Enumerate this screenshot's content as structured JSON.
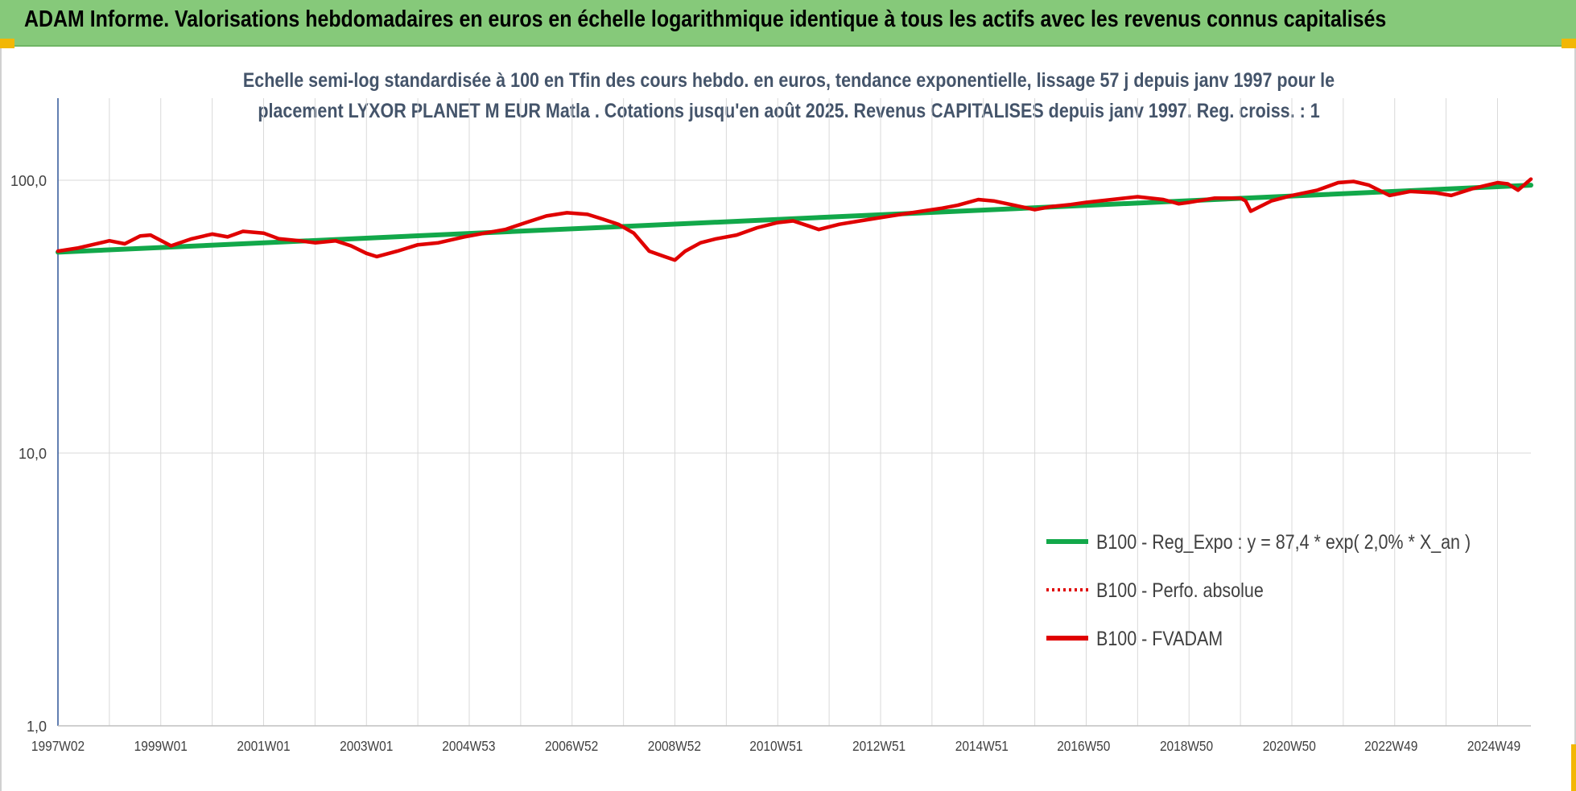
{
  "header": {
    "title": "ADAM Informe. Valorisations hebdomadaires en euros en échelle logarithmique identique à tous les actifs avec les revenus connus capitalisés"
  },
  "chart_data": {
    "type": "line",
    "title_lines": [
      "Echelle semi-log standardisée à 100 en Tfin des cours hebdo. en euros, tendance exponentielle, lissage 57 j depuis janv 1997 pour le",
      "placement LYXOR PLANET M EUR Matla . Cotations jusqu'en août 2025. Revenus CAPITALISES depuis janv 1997. Reg. croiss. : 1"
    ],
    "y_scale": "log",
    "ylim": [
      1,
      200
    ],
    "y_ticks": [
      {
        "value": 1,
        "label": "1,0"
      },
      {
        "value": 10,
        "label": "10,0"
      },
      {
        "value": 100,
        "label": "100,0"
      }
    ],
    "xlim": [
      1997.0,
      2025.65
    ],
    "x_ticks": [
      {
        "value": 1997.0,
        "label": "1997W02"
      },
      {
        "value": 1999.0,
        "label": "1999W01"
      },
      {
        "value": 2001.0,
        "label": "2001W01"
      },
      {
        "value": 2003.0,
        "label": "2003W01"
      },
      {
        "value": 2004.99,
        "label": "2004W53"
      },
      {
        "value": 2006.99,
        "label": "2006W52"
      },
      {
        "value": 2008.99,
        "label": "2008W52"
      },
      {
        "value": 2010.97,
        "label": "2010W51"
      },
      {
        "value": 2012.97,
        "label": "2012W51"
      },
      {
        "value": 2014.97,
        "label": "2014W51"
      },
      {
        "value": 2016.95,
        "label": "2016W50"
      },
      {
        "value": 2018.95,
        "label": "2018W50"
      },
      {
        "value": 2020.95,
        "label": "2020W50"
      },
      {
        "value": 2022.93,
        "label": "2022W49"
      },
      {
        "value": 2024.93,
        "label": "2024W49"
      }
    ],
    "grid": true,
    "legend_position": "lower-right",
    "series": [
      {
        "name": "B100 - Reg_Expo : y = 87,4 * exp( 2,0% *  X_an )",
        "color": "#12a84a",
        "style": "solid",
        "x": [
          1997.0,
          2025.65
        ],
        "y": [
          54.5,
          96.0
        ]
      },
      {
        "name": "B100 - Perfo. absolue",
        "color": "#e00000",
        "style": "dotted",
        "x": [],
        "y": []
      },
      {
        "name": "B100 - FVADAM",
        "color": "#e00000",
        "style": "solid",
        "x": [
          1997.0,
          1997.4,
          1998.0,
          1998.3,
          1998.6,
          1998.8,
          1999.2,
          1999.6,
          2000.0,
          2000.3,
          2000.6,
          2001.0,
          2001.3,
          2001.7,
          2002.0,
          2002.4,
          2002.7,
          2003.0,
          2003.2,
          2003.6,
          2004.0,
          2004.4,
          2004.9,
          2005.3,
          2005.7,
          2006.1,
          2006.5,
          2006.9,
          2007.3,
          2007.6,
          2007.9,
          2008.2,
          2008.5,
          2008.8,
          2009.0,
          2009.2,
          2009.5,
          2009.8,
          2010.2,
          2010.6,
          2011.0,
          2011.3,
          2011.6,
          2011.8,
          2012.2,
          2012.6,
          2013.0,
          2013.4,
          2013.8,
          2014.2,
          2014.5,
          2014.9,
          2015.2,
          2015.6,
          2016.0,
          2016.3,
          2016.7,
          2017.0,
          2017.5,
          2018.0,
          2018.5,
          2018.8,
          2019.0,
          2019.5,
          2020.0,
          2020.1,
          2020.2,
          2020.6,
          2021.0,
          2021.5,
          2021.9,
          2022.2,
          2022.5,
          2022.9,
          2023.3,
          2023.8,
          2024.1,
          2024.5,
          2024.8,
          2025.0,
          2025.2,
          2025.4,
          2025.65
        ],
        "y": [
          55.0,
          56.5,
          60.0,
          58.5,
          62.5,
          63.0,
          57.5,
          61.0,
          63.5,
          62.0,
          65.0,
          64.0,
          61.0,
          60.0,
          59.0,
          60.0,
          57.5,
          54.0,
          52.5,
          55.0,
          58.0,
          59.0,
          62.0,
          64.0,
          66.0,
          70.0,
          74.0,
          76.0,
          75.0,
          72.0,
          69.0,
          64.0,
          55.0,
          52.5,
          51.0,
          55.0,
          59.0,
          61.0,
          63.0,
          67.0,
          70.0,
          71.0,
          68.0,
          66.0,
          69.0,
          71.0,
          73.0,
          75.0,
          77.0,
          79.0,
          81.0,
          85.0,
          84.0,
          81.0,
          78.0,
          80.0,
          81.5,
          83.0,
          85.0,
          87.0,
          85.0,
          82.0,
          83.0,
          86.0,
          86.0,
          84.0,
          77.0,
          84.0,
          88.0,
          92.0,
          98.0,
          99.0,
          96.0,
          88.0,
          91.0,
          90.0,
          88.0,
          93.0,
          96.0,
          98.0,
          97.0,
          92.0,
          101.0
        ]
      }
    ]
  }
}
